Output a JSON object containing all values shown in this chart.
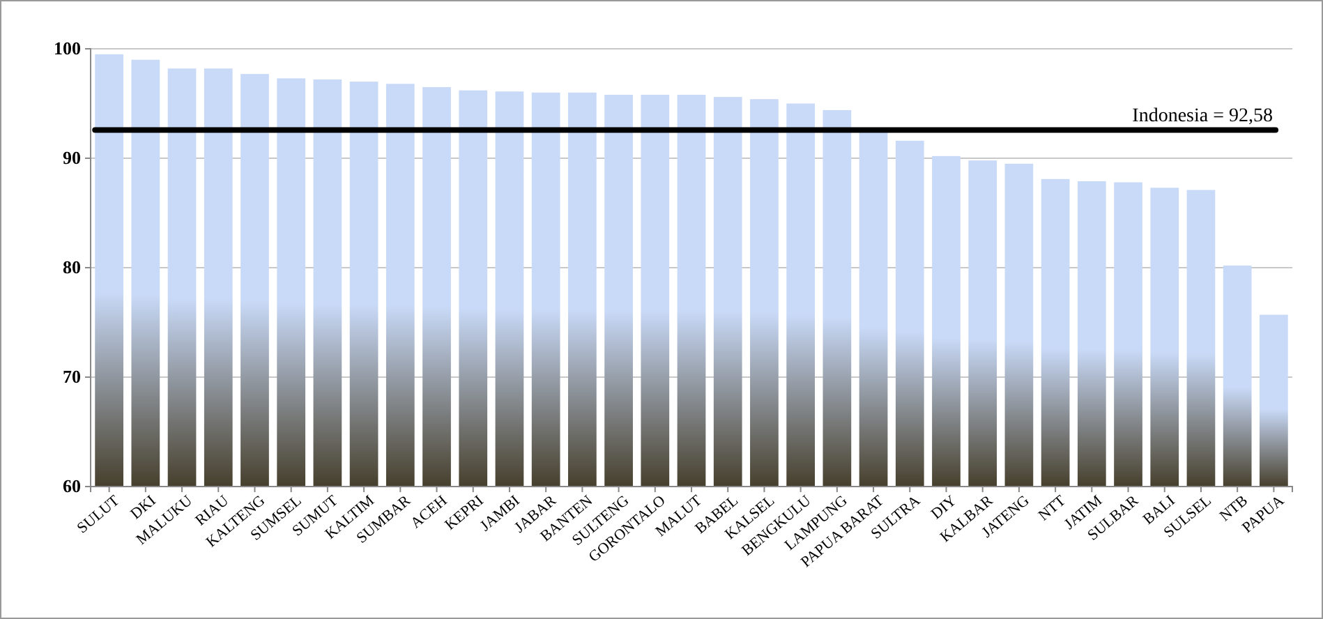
{
  "chart_data": {
    "type": "bar",
    "categories": [
      "SULUT",
      "DKI",
      "MALUKU",
      "RIAU",
      "KALTENG",
      "SUMSEL",
      "SUMUT",
      "KALTIM",
      "SUMBAR",
      "ACEH",
      "KEPRI",
      "JAMBI",
      "JABAR",
      "BANTEN",
      "SULTENG",
      "GORONTALO",
      "MALUT",
      "BABEL",
      "KALSEL",
      "BENGKULU",
      "LAMPUNG",
      "PAPUA BARAT",
      "SULTRA",
      "DIY",
      "KALBAR",
      "JATENG",
      "NTT",
      "JATIM",
      "SULBAR",
      "BALI",
      "SULSEL",
      "NTB",
      "PAPUA"
    ],
    "values": [
      99.5,
      99.0,
      98.2,
      98.2,
      97.7,
      97.3,
      97.2,
      97.0,
      96.8,
      96.5,
      96.2,
      96.1,
      96.0,
      96.0,
      95.8,
      95.8,
      95.8,
      95.6,
      95.4,
      95.0,
      94.4,
      92.4,
      91.6,
      90.2,
      89.8,
      89.5,
      88.1,
      87.9,
      87.8,
      87.3,
      87.1,
      80.2,
      75.7
    ],
    "color": "#c9daf8",
    "ylim": [
      60,
      100
    ],
    "yticks": [
      60,
      70,
      80,
      90,
      100
    ],
    "grid": "y",
    "ref_lines": [
      {
        "axis": "y",
        "value": 92.58,
        "label": "Indonesia = 92,58",
        "color": "#000000"
      }
    ]
  }
}
